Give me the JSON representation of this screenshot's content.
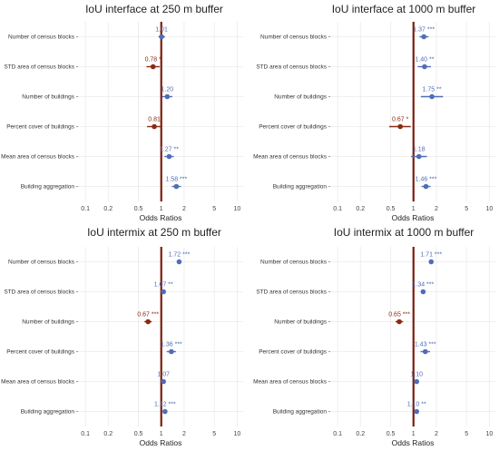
{
  "colors": {
    "positive": "#4f6db8",
    "negative": "#8b2a14",
    "refline": "#7a1f0e",
    "grid": "#ebebeb"
  },
  "chart_data": [
    {
      "type": "forest",
      "title": "IoU interface at 250 m buffer",
      "xlabel": "Odds Ratios",
      "xscale": "log",
      "xlim": [
        0.08,
        12
      ],
      "xticks": [
        0.1,
        0.2,
        0.5,
        1,
        2,
        5,
        10
      ],
      "tick_labels": [
        "0.1",
        "0.2",
        "0.5",
        "1",
        "2",
        "5",
        "10"
      ],
      "ref_line": 1,
      "rows": [
        {
          "label": "Number of census blocks",
          "or": 1.01,
          "low": 0.92,
          "high": 1.12,
          "text": "1.01",
          "color": "positive"
        },
        {
          "label": "STD area of census blocks",
          "or": 0.78,
          "low": 0.64,
          "high": 0.95,
          "text": "0.78 *",
          "color": "negative"
        },
        {
          "label": "Number of buildings",
          "or": 1.2,
          "low": 1.02,
          "high": 1.4,
          "text": "1.20",
          "color": "positive"
        },
        {
          "label": "Percent cover of buildings",
          "or": 0.81,
          "low": 0.65,
          "high": 1.0,
          "text": "0.81",
          "color": "negative"
        },
        {
          "label": "Mean area of census blocks",
          "or": 1.27,
          "low": 1.1,
          "high": 1.46,
          "text": "1.27 **",
          "color": "positive"
        },
        {
          "label": "Building aggregation",
          "or": 1.58,
          "low": 1.38,
          "high": 1.82,
          "text": "1.58 ***",
          "color": "positive"
        }
      ]
    },
    {
      "type": "forest",
      "title": "IoU interface at 1000 m buffer",
      "xlabel": "Odds Ratios",
      "xscale": "log",
      "xlim": [
        0.08,
        12
      ],
      "xticks": [
        0.1,
        0.2,
        0.5,
        1,
        2,
        5,
        10
      ],
      "tick_labels": [
        "0.1",
        "0.2",
        "0.5",
        "1",
        "2",
        "5",
        "10"
      ],
      "ref_line": 1,
      "rows": [
        {
          "label": "Number of census blocks",
          "or": 1.37,
          "low": 1.2,
          "high": 1.58,
          "text": "1.37 ***",
          "color": "positive"
        },
        {
          "label": "STD area of census blocks",
          "or": 1.4,
          "low": 1.14,
          "high": 1.7,
          "text": "1.40 **",
          "color": "positive"
        },
        {
          "label": "Number of buildings",
          "or": 1.75,
          "low": 1.25,
          "high": 2.45,
          "text": "1.75 **",
          "color": "positive"
        },
        {
          "label": "Percent cover of buildings",
          "or": 0.67,
          "low": 0.48,
          "high": 0.92,
          "text": "0.67 *",
          "color": "negative"
        },
        {
          "label": "Mean area of census blocks",
          "or": 1.18,
          "low": 0.93,
          "high": 1.5,
          "text": "1.18",
          "color": "positive"
        },
        {
          "label": "Building aggregation",
          "or": 1.46,
          "low": 1.28,
          "high": 1.68,
          "text": "1.46 ***",
          "color": "positive"
        }
      ]
    },
    {
      "type": "forest",
      "title": "IoU intermix at 250 m buffer",
      "xlabel": "Odds Ratios",
      "xscale": "log",
      "xlim": [
        0.08,
        12
      ],
      "xticks": [
        0.1,
        0.2,
        0.5,
        1,
        2,
        5,
        10
      ],
      "tick_labels": [
        "0.1",
        "0.2",
        "0.5",
        "1",
        "2",
        "5",
        "10"
      ],
      "ref_line": 1,
      "rows": [
        {
          "label": "Number of census blocks",
          "or": 1.72,
          "low": 1.62,
          "high": 1.82,
          "text": "1.72 ***",
          "color": "positive"
        },
        {
          "label": "STD area of census blocks",
          "or": 1.07,
          "low": 1.02,
          "high": 1.12,
          "text": "1.07 **",
          "color": "positive"
        },
        {
          "label": "Number of buildings",
          "or": 0.67,
          "low": 0.6,
          "high": 0.75,
          "text": "0.67 ***",
          "color": "negative"
        },
        {
          "label": "Percent cover of buildings",
          "or": 1.36,
          "low": 1.18,
          "high": 1.56,
          "text": "1.36 ***",
          "color": "positive"
        },
        {
          "label": "Mean area of census blocks",
          "or": 1.07,
          "low": 1.0,
          "high": 1.14,
          "text": "1.07",
          "color": "positive"
        },
        {
          "label": "Building aggregation",
          "or": 1.12,
          "low": 1.06,
          "high": 1.18,
          "text": "1.12 ***",
          "color": "positive"
        }
      ]
    },
    {
      "type": "forest",
      "title": "IoU intermix at 1000 m buffer",
      "xlabel": "Odds Ratios",
      "xscale": "log",
      "xlim": [
        0.08,
        12
      ],
      "xticks": [
        0.1,
        0.2,
        0.5,
        1,
        2,
        5,
        10
      ],
      "tick_labels": [
        "0.1",
        "0.2",
        "0.5",
        "1",
        "2",
        "5",
        "10"
      ],
      "ref_line": 1,
      "rows": [
        {
          "label": "Number of census blocks",
          "or": 1.71,
          "low": 1.62,
          "high": 1.8,
          "text": "1.71 ***",
          "color": "positive"
        },
        {
          "label": "STD area of census blocks",
          "or": 1.34,
          "low": 1.26,
          "high": 1.42,
          "text": "1.34 ***",
          "color": "positive"
        },
        {
          "label": "Number of buildings",
          "or": 0.65,
          "low": 0.58,
          "high": 0.73,
          "text": "0.65 ***",
          "color": "negative"
        },
        {
          "label": "Percent cover of buildings",
          "or": 1.43,
          "low": 1.24,
          "high": 1.65,
          "text": "1.43 ***",
          "color": "positive"
        },
        {
          "label": "Mean area of census blocks",
          "or": 1.1,
          "low": 1.02,
          "high": 1.18,
          "text": "1.10",
          "color": "positive"
        },
        {
          "label": "Building aggregation",
          "or": 1.1,
          "low": 1.04,
          "high": 1.16,
          "text": "1.10 **",
          "color": "positive"
        }
      ]
    }
  ]
}
